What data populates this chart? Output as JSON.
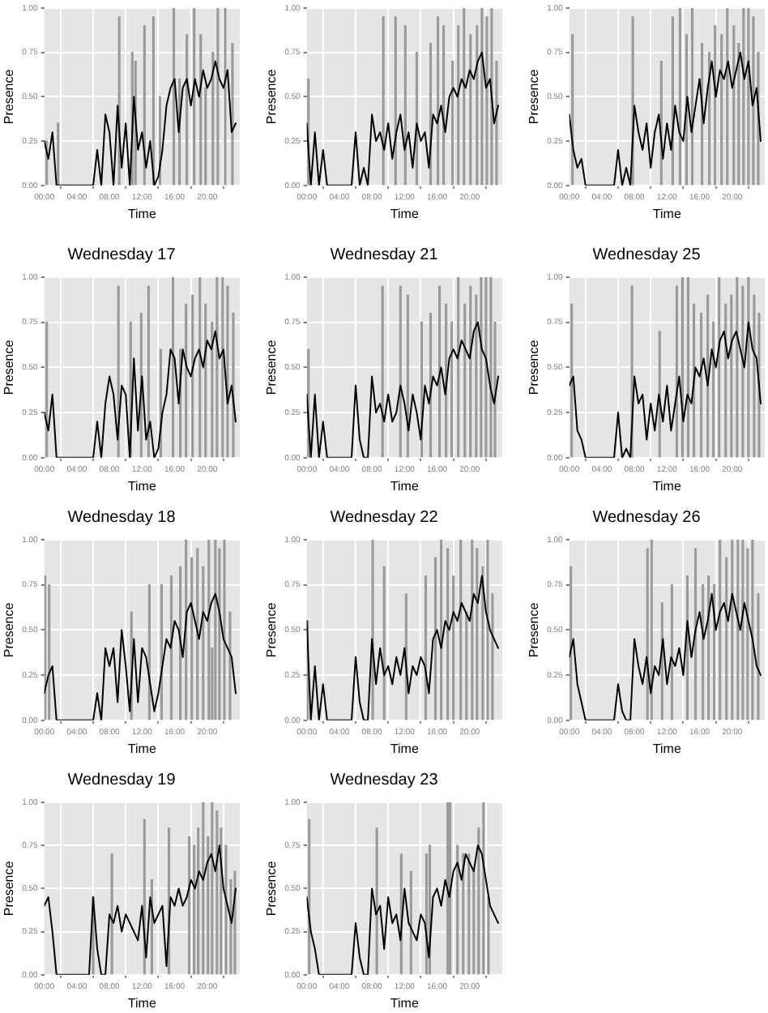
{
  "chart_data": [
    {
      "type": "line",
      "xlabel": "Time",
      "ylabel": "Presence",
      "xlim": [
        0,
        24
      ],
      "xticks": [
        {
          "value": 0,
          "label": "00:00"
        },
        {
          "value": 4,
          "label": "04:00"
        },
        {
          "value": 8,
          "label": "08:00"
        },
        {
          "value": 12,
          "label": "12:00"
        },
        {
          "value": 16,
          "label": "16:00"
        },
        {
          "value": 20,
          "label": "20:00"
        }
      ],
      "ylim": [
        0,
        1
      ],
      "yticks": [
        {
          "value": 0,
          "label": "0.00"
        },
        {
          "value": 0.25,
          "label": "0.25"
        },
        {
          "value": 0.5,
          "label": "0.50"
        },
        {
          "value": 0.75,
          "label": "0.75"
        },
        {
          "value": 1,
          "label": "1.00"
        }
      ],
      "grid": true,
      "legend": false,
      "marker": "none",
      "x": [
        0,
        0.5,
        1,
        1.5,
        2,
        2.5,
        3,
        3.5,
        4,
        4.5,
        5,
        5.5,
        6,
        6.5,
        7,
        7.5,
        8,
        8.5,
        9,
        9.5,
        10,
        10.5,
        11,
        11.5,
        12,
        12.5,
        13,
        13.5,
        14,
        14.5,
        15,
        15.5,
        16,
        16.5,
        17,
        17.5,
        18,
        18.5,
        19,
        19.5,
        20,
        20.5,
        21,
        21.5,
        22,
        22.5,
        23,
        23.5
      ],
      "series": [
        {
          "type": "bar",
          "color": "#999999",
          "x": [
            0.3,
            1.7,
            9.2,
            10.8,
            11.2,
            12.3,
            13.4,
            14.2,
            15.9,
            16.6,
            17.5,
            18.4,
            19.2,
            19.8,
            20.7,
            21.3,
            22.2,
            23.1
          ],
          "values": [
            0.25,
            0.35,
            0.95,
            0.75,
            0.7,
            0.9,
            0.95,
            0.5,
            1,
            0.6,
            0.85,
            1,
            0.85,
            0.55,
            0.75,
            1,
            1,
            0.8
          ]
        },
        {
          "color": "#000000",
          "values": [
            0.25,
            0.15,
            0.3,
            0,
            0,
            0,
            0,
            0,
            0,
            0,
            0,
            0,
            0,
            0.2,
            0,
            0.4,
            0.3,
            0,
            0.45,
            0.1,
            0.35,
            0,
            0.5,
            0.2,
            0.3,
            0.1,
            0.25,
            0,
            0.05,
            0.2,
            0.45,
            0.55,
            0.6,
            0.3,
            0.55,
            0.6,
            0.45,
            0.6,
            0.5,
            0.65,
            0.55,
            0.6,
            0.7,
            0.6,
            0.55,
            0.65,
            0.3,
            0.35
          ]
        }
      ]
    },
    {
      "type": "line",
      "xlabel": "Time",
      "ylabel": "Presence",
      "xlim": [
        0,
        24
      ],
      "xticks": [
        {
          "value": 0,
          "label": "00:00"
        },
        {
          "value": 4,
          "label": "04:00"
        },
        {
          "value": 8,
          "label": "08:00"
        },
        {
          "value": 12,
          "label": "12:00"
        },
        {
          "value": 16,
          "label": "16:00"
        },
        {
          "value": 20,
          "label": "20:00"
        }
      ],
      "ylim": [
        0,
        1
      ],
      "yticks": [
        {
          "value": 0,
          "label": "0.00"
        },
        {
          "value": 0.25,
          "label": "0.25"
        },
        {
          "value": 0.5,
          "label": "0.50"
        },
        {
          "value": 0.75,
          "label": "0.75"
        },
        {
          "value": 1,
          "label": "1.00"
        }
      ],
      "grid": true,
      "legend": false,
      "marker": "none",
      "x": [
        0,
        0.5,
        1,
        1.5,
        2,
        2.5,
        3,
        3.5,
        4,
        4.5,
        5,
        5.5,
        6,
        6.5,
        7,
        7.5,
        8,
        8.5,
        9,
        9.5,
        10,
        10.5,
        11,
        11.5,
        12,
        12.5,
        13,
        13.5,
        14,
        14.5,
        15,
        15.5,
        16,
        16.5,
        17,
        17.5,
        18,
        18.5,
        19,
        19.5,
        20,
        20.5,
        21,
        21.5,
        22,
        22.5,
        23,
        23.5
      ],
      "series": [
        {
          "type": "bar",
          "color": "#999999",
          "x": [
            0.2,
            9.4,
            10.9,
            12.1,
            13.5,
            15.2,
            16.1,
            16.8,
            17.9,
            18.6,
            19.3,
            20.1,
            20.9,
            21.5,
            22.1,
            22.7,
            23.3
          ],
          "values": [
            0.6,
            0.95,
            0.95,
            0.9,
            0.75,
            0.8,
            0.95,
            0.9,
            0.7,
            0.9,
            1,
            0.85,
            0.9,
            1,
            0.95,
            1,
            0.7
          ]
        },
        {
          "color": "#000000",
          "values": [
            0.35,
            0,
            0.3,
            0,
            0.2,
            0,
            0,
            0,
            0,
            0,
            0,
            0,
            0.3,
            0,
            0.1,
            0,
            0.4,
            0.25,
            0.3,
            0.2,
            0.35,
            0.15,
            0.3,
            0.4,
            0.2,
            0.3,
            0.1,
            0.35,
            0.25,
            0.3,
            0.1,
            0.4,
            0.35,
            0.45,
            0.3,
            0.5,
            0.55,
            0.5,
            0.6,
            0.55,
            0.65,
            0.6,
            0.7,
            0.75,
            0.55,
            0.6,
            0.35,
            0.45
          ]
        }
      ]
    },
    {
      "type": "line",
      "xlabel": "Time",
      "ylabel": "Presence",
      "xlim": [
        0,
        24
      ],
      "xticks": [
        {
          "value": 0,
          "label": "00:00"
        },
        {
          "value": 4,
          "label": "04:00"
        },
        {
          "value": 8,
          "label": "08:00"
        },
        {
          "value": 12,
          "label": "12:00"
        },
        {
          "value": 16,
          "label": "16:00"
        },
        {
          "value": 20,
          "label": "20:00"
        }
      ],
      "ylim": [
        0,
        1
      ],
      "yticks": [
        {
          "value": 0,
          "label": "0.00"
        },
        {
          "value": 0.25,
          "label": "0.25"
        },
        {
          "value": 0.5,
          "label": "0.50"
        },
        {
          "value": 0.75,
          "label": "0.75"
        },
        {
          "value": 1,
          "label": "1.00"
        }
      ],
      "grid": true,
      "legend": false,
      "marker": "none",
      "x": [
        0,
        0.5,
        1,
        1.5,
        2,
        2.5,
        3,
        3.5,
        4,
        4.5,
        5,
        5.5,
        6,
        6.5,
        7,
        7.5,
        8,
        8.5,
        9,
        9.5,
        10,
        10.5,
        11,
        11.5,
        12,
        12.5,
        13,
        13.5,
        14,
        14.5,
        15,
        15.5,
        16,
        16.5,
        17,
        17.5,
        18,
        18.5,
        19,
        19.5,
        20,
        20.5,
        21,
        21.5,
        22,
        22.5,
        23,
        23.5
      ],
      "series": [
        {
          "type": "bar",
          "color": "#999999",
          "x": [
            0.4,
            7.8,
            11.3,
            12.7,
            13.6,
            14.4,
            15.1,
            16.3,
            17.2,
            17.9,
            18.7,
            19.4,
            20.2,
            20.8,
            21.4,
            22,
            22.6,
            23.2
          ],
          "values": [
            0.85,
            0.95,
            0.7,
            0.95,
            1,
            0.85,
            1,
            0.8,
            0.75,
            0.9,
            0.85,
            1,
            0.9,
            0.8,
            1,
            1,
            0.95,
            0.75
          ]
        },
        {
          "color": "#000000",
          "values": [
            0.4,
            0.2,
            0.1,
            0.15,
            0,
            0,
            0,
            0,
            0,
            0,
            0,
            0,
            0.2,
            0,
            0.1,
            0,
            0.45,
            0.3,
            0.2,
            0.35,
            0.1,
            0.3,
            0.4,
            0.15,
            0.35,
            0.2,
            0.45,
            0.3,
            0.25,
            0.5,
            0.3,
            0.45,
            0.6,
            0.35,
            0.55,
            0.7,
            0.5,
            0.65,
            0.6,
            0.7,
            0.55,
            0.65,
            0.75,
            0.6,
            0.7,
            0.45,
            0.55,
            0.25
          ]
        }
      ]
    },
    {
      "type": "line",
      "title": "Wednesday 17",
      "xlabel": "Time",
      "ylabel": "Presence",
      "xlim": [
        0,
        24
      ],
      "xticks": [
        {
          "value": 0,
          "label": "00:00"
        },
        {
          "value": 4,
          "label": "04:00"
        },
        {
          "value": 8,
          "label": "08:00"
        },
        {
          "value": 12,
          "label": "12:00"
        },
        {
          "value": 16,
          "label": "16:00"
        },
        {
          "value": 20,
          "label": "20:00"
        }
      ],
      "ylim": [
        0,
        1
      ],
      "yticks": [
        {
          "value": 0,
          "label": "0.00"
        },
        {
          "value": 0.25,
          "label": "0.25"
        },
        {
          "value": 0.5,
          "label": "0.50"
        },
        {
          "value": 0.75,
          "label": "0.75"
        },
        {
          "value": 1,
          "label": "1.00"
        }
      ],
      "grid": true,
      "legend": false,
      "marker": "none",
      "x": [
        0,
        0.5,
        1,
        1.5,
        2,
        2.5,
        3,
        3.5,
        4,
        4.5,
        5,
        5.5,
        6,
        6.5,
        7,
        7.5,
        8,
        8.5,
        9,
        9.5,
        10,
        10.5,
        11,
        11.5,
        12,
        12.5,
        13,
        13.5,
        14,
        14.5,
        15,
        15.5,
        16,
        16.5,
        17,
        17.5,
        18,
        18.5,
        19,
        19.5,
        20,
        20.5,
        21,
        21.5,
        22,
        22.5,
        23,
        23.5
      ],
      "series": [
        {
          "type": "bar",
          "color": "#999999",
          "x": [
            0.3,
            9.1,
            10.6,
            11.9,
            12.8,
            14.3,
            15.8,
            16.7,
            17.4,
            18.2,
            19.1,
            19.8,
            20.6,
            21.2,
            21.9,
            22.5,
            23.2
          ],
          "values": [
            0.75,
            0.95,
            0.75,
            0.8,
            0.95,
            0.6,
            1,
            0.6,
            0.85,
            0.9,
            1,
            0.85,
            0.75,
            1,
            1,
            0.95,
            0.8
          ]
        },
        {
          "color": "#000000",
          "values": [
            0.25,
            0.15,
            0.35,
            0,
            0,
            0,
            0,
            0,
            0,
            0,
            0,
            0,
            0,
            0.2,
            0,
            0.3,
            0.45,
            0.35,
            0.1,
            0.4,
            0.35,
            0,
            0.55,
            0.15,
            0.45,
            0.1,
            0.2,
            0,
            0.05,
            0.25,
            0.35,
            0.6,
            0.55,
            0.3,
            0.6,
            0.5,
            0.45,
            0.55,
            0.6,
            0.5,
            0.65,
            0.6,
            0.7,
            0.55,
            0.6,
            0.3,
            0.4,
            0.2
          ]
        }
      ]
    },
    {
      "type": "line",
      "title": "Wednesday 21",
      "xlabel": "Time",
      "ylabel": "Presence",
      "xlim": [
        0,
        24
      ],
      "xticks": [
        {
          "value": 0,
          "label": "00:00"
        },
        {
          "value": 4,
          "label": "04:00"
        },
        {
          "value": 8,
          "label": "08:00"
        },
        {
          "value": 12,
          "label": "12:00"
        },
        {
          "value": 16,
          "label": "16:00"
        },
        {
          "value": 20,
          "label": "20:00"
        }
      ],
      "ylim": [
        0,
        1
      ],
      "yticks": [
        {
          "value": 0,
          "label": "0.00"
        },
        {
          "value": 0.25,
          "label": "0.25"
        },
        {
          "value": 0.5,
          "label": "0.50"
        },
        {
          "value": 0.75,
          "label": "0.75"
        },
        {
          "value": 1,
          "label": "1.00"
        }
      ],
      "grid": true,
      "legend": false,
      "marker": "none",
      "x": [
        0,
        0.5,
        1,
        1.5,
        2,
        2.5,
        3,
        3.5,
        4,
        4.5,
        5,
        5.5,
        6,
        6.5,
        7,
        7.5,
        8,
        8.5,
        9,
        9.5,
        10,
        10.5,
        11,
        11.5,
        12,
        12.5,
        13,
        13.5,
        14,
        14.5,
        15,
        15.5,
        16,
        16.5,
        17,
        17.5,
        18,
        18.5,
        19,
        19.5,
        20,
        20.5,
        21,
        21.5,
        22,
        22.5,
        23,
        23.5
      ],
      "series": [
        {
          "type": "bar",
          "color": "#999999",
          "x": [
            0.2,
            9.3,
            11.5,
            12.4,
            14.1,
            15.2,
            16.3,
            17.1,
            17.8,
            18.6,
            19.4,
            20.1,
            20.8,
            21.4,
            22,
            22.6,
            23.1
          ],
          "values": [
            0.6,
            0.95,
            0.95,
            0.9,
            0.75,
            0.8,
            0.95,
            0.85,
            0.75,
            1,
            0.85,
            0.95,
            0.9,
            1,
            1,
            1,
            0.75
          ]
        },
        {
          "color": "#000000",
          "values": [
            0.35,
            0,
            0.35,
            0,
            0.2,
            0,
            0,
            0,
            0,
            0,
            0,
            0,
            0.4,
            0.1,
            0,
            0,
            0.45,
            0.25,
            0.3,
            0.2,
            0.35,
            0.2,
            0.25,
            0.4,
            0.3,
            0.15,
            0.35,
            0.25,
            0.1,
            0.4,
            0.3,
            0.45,
            0.4,
            0.5,
            0.35,
            0.55,
            0.6,
            0.55,
            0.65,
            0.6,
            0.55,
            0.7,
            0.75,
            0.6,
            0.55,
            0.4,
            0.3,
            0.45
          ]
        }
      ]
    },
    {
      "type": "line",
      "title": "Wednesday 25",
      "xlabel": "Time",
      "ylabel": "Presence",
      "xlim": [
        0,
        24
      ],
      "xticks": [
        {
          "value": 0,
          "label": "00:00"
        },
        {
          "value": 4,
          "label": "04:00"
        },
        {
          "value": 8,
          "label": "08:00"
        },
        {
          "value": 12,
          "label": "12:00"
        },
        {
          "value": 16,
          "label": "16:00"
        },
        {
          "value": 20,
          "label": "20:00"
        }
      ],
      "ylim": [
        0,
        1
      ],
      "yticks": [
        {
          "value": 0,
          "label": "0.00"
        },
        {
          "value": 0.25,
          "label": "0.25"
        },
        {
          "value": 0.5,
          "label": "0.50"
        },
        {
          "value": 0.75,
          "label": "0.75"
        },
        {
          "value": 1,
          "label": "1.00"
        }
      ],
      "grid": true,
      "legend": false,
      "marker": "none",
      "x": [
        0,
        0.5,
        1,
        1.5,
        2,
        2.5,
        3,
        3.5,
        4,
        4.5,
        5,
        5.5,
        6,
        6.5,
        7,
        7.5,
        8,
        8.5,
        9,
        9.5,
        10,
        10.5,
        11,
        11.5,
        12,
        12.5,
        13,
        13.5,
        14,
        14.5,
        15,
        15.5,
        16,
        16.5,
        17,
        17.5,
        18,
        18.5,
        19,
        19.5,
        20,
        20.5,
        21,
        21.5,
        22,
        22.5,
        23,
        23.5
      ],
      "series": [
        {
          "type": "bar",
          "color": "#999999",
          "x": [
            0.3,
            7.7,
            11.1,
            13.2,
            13.9,
            14.6,
            15.3,
            16.2,
            17,
            17.7,
            18.4,
            19.2,
            19.9,
            20.6,
            21.3,
            22,
            22.7,
            23.3
          ],
          "values": [
            0.85,
            0.95,
            0.7,
            0.95,
            1,
            1,
            0.85,
            0.8,
            0.9,
            0.75,
            1,
            0.85,
            0.9,
            1,
            0.95,
            1,
            0.9,
            0.8
          ]
        },
        {
          "color": "#000000",
          "values": [
            0.4,
            0.45,
            0.15,
            0.1,
            0,
            0,
            0,
            0,
            0,
            0,
            0,
            0,
            0.25,
            0,
            0.05,
            0,
            0.45,
            0.3,
            0.35,
            0.1,
            0.3,
            0.15,
            0.35,
            0.2,
            0.4,
            0.15,
            0.3,
            0.45,
            0.2,
            0.35,
            0.3,
            0.5,
            0.45,
            0.55,
            0.4,
            0.6,
            0.5,
            0.65,
            0.7,
            0.55,
            0.65,
            0.7,
            0.6,
            0.5,
            0.75,
            0.6,
            0.55,
            0.3
          ]
        }
      ]
    },
    {
      "type": "line",
      "title": "Wednesday 18",
      "xlabel": "Time",
      "ylabel": "Presence",
      "xlim": [
        0,
        24
      ],
      "xticks": [
        {
          "value": 0,
          "label": "00:00"
        },
        {
          "value": 4,
          "label": "04:00"
        },
        {
          "value": 8,
          "label": "08:00"
        },
        {
          "value": 12,
          "label": "12:00"
        },
        {
          "value": 16,
          "label": "16:00"
        },
        {
          "value": 20,
          "label": "20:00"
        }
      ],
      "ylim": [
        0,
        1
      ],
      "yticks": [
        {
          "value": 0,
          "label": "0.00"
        },
        {
          "value": 0.25,
          "label": "0.25"
        },
        {
          "value": 0.5,
          "label": "0.50"
        },
        {
          "value": 0.75,
          "label": "0.75"
        },
        {
          "value": 1,
          "label": "1.00"
        }
      ],
      "grid": true,
      "legend": false,
      "marker": "none",
      "x": [
        0,
        0.5,
        1,
        1.5,
        2,
        2.5,
        3,
        3.5,
        4,
        4.5,
        5,
        5.5,
        6,
        6.5,
        7,
        7.5,
        8,
        8.5,
        9,
        9.5,
        10,
        10.5,
        11,
        11.5,
        12,
        12.5,
        13,
        13.5,
        14,
        14.5,
        15,
        15.5,
        16,
        16.5,
        17,
        17.5,
        18,
        18.5,
        19,
        19.5,
        20,
        20.5,
        21,
        21.5,
        22,
        22.5,
        23,
        23.5
      ],
      "series": [
        {
          "type": "bar",
          "color": "#999999",
          "x": [
            0.1,
            0.6,
            10.7,
            12.9,
            14.4,
            15.6,
            16.7,
            17.4,
            18.1,
            18.8,
            19.5,
            20.2,
            20.6,
            21,
            21.5,
            22.1,
            22.8
          ],
          "values": [
            0.8,
            0.75,
            0.6,
            0.75,
            0.75,
            0.8,
            0.85,
            1,
            0.9,
            0.95,
            0.85,
            1,
            0.4,
            1,
            0.95,
            1,
            0.6
          ]
        },
        {
          "color": "#000000",
          "values": [
            0.15,
            0.25,
            0.3,
            0,
            0,
            0,
            0,
            0,
            0,
            0,
            0,
            0,
            0,
            0.15,
            0,
            0.4,
            0.3,
            0.4,
            0.1,
            0.5,
            0.3,
            0.05,
            0.45,
            0.1,
            0.4,
            0.35,
            0.2,
            0.05,
            0.15,
            0.3,
            0.45,
            0.4,
            0.55,
            0.5,
            0.35,
            0.6,
            0.65,
            0.55,
            0.45,
            0.6,
            0.55,
            0.65,
            0.7,
            0.6,
            0.45,
            0.4,
            0.35,
            0.15
          ]
        }
      ]
    },
    {
      "type": "line",
      "title": "Wednesday 22",
      "xlabel": "Time",
      "ylabel": "Presence",
      "xlim": [
        0,
        24
      ],
      "xticks": [
        {
          "value": 0,
          "label": "00:00"
        },
        {
          "value": 4,
          "label": "04:00"
        },
        {
          "value": 8,
          "label": "08:00"
        },
        {
          "value": 12,
          "label": "12:00"
        },
        {
          "value": 16,
          "label": "16:00"
        },
        {
          "value": 20,
          "label": "20:00"
        }
      ],
      "ylim": [
        0,
        1
      ],
      "yticks": [
        {
          "value": 0,
          "label": "0.00"
        },
        {
          "value": 0.25,
          "label": "0.25"
        },
        {
          "value": 0.5,
          "label": "0.50"
        },
        {
          "value": 0.75,
          "label": "0.75"
        },
        {
          "value": 1,
          "label": "1.00"
        }
      ],
      "grid": true,
      "legend": false,
      "marker": "none",
      "x": [
        0,
        0.5,
        1,
        1.5,
        2,
        2.5,
        3,
        3.5,
        4,
        4.5,
        5,
        5.5,
        6,
        6.5,
        7,
        7.5,
        8,
        8.5,
        9,
        9.5,
        10,
        10.5,
        11,
        11.5,
        12,
        12.5,
        13,
        13.5,
        14,
        14.5,
        15,
        15.5,
        16,
        16.5,
        17,
        17.5,
        18,
        18.5,
        19,
        19.5,
        20,
        20.5,
        21,
        21.5,
        22,
        22.5,
        23,
        23.5
      ],
      "series": [
        {
          "type": "bar",
          "color": "#999999",
          "x": [
            0.1,
            8.1,
            9.5,
            12.2,
            14.6,
            15.8,
            16.5,
            17.3,
            18,
            18.9,
            19.6,
            20.3,
            20.9,
            21.6,
            22.2,
            22.8
          ],
          "values": [
            0.55,
            1,
            0.85,
            0.7,
            0.8,
            0.9,
            1,
            0.95,
            0.8,
            1,
            0.6,
            1,
            0.95,
            0.85,
            1,
            0.7
          ]
        },
        {
          "color": "#000000",
          "values": [
            0.55,
            0,
            0.3,
            0,
            0.2,
            0,
            0,
            0,
            0,
            0,
            0,
            0,
            0.35,
            0.1,
            0,
            0,
            0.45,
            0.2,
            0.4,
            0.25,
            0.3,
            0.2,
            0.35,
            0.25,
            0.4,
            0.15,
            0.3,
            0.25,
            0.35,
            0.3,
            0.15,
            0.45,
            0.5,
            0.4,
            0.55,
            0.5,
            0.6,
            0.55,
            0.65,
            0.6,
            0.55,
            0.7,
            0.65,
            0.8,
            0.6,
            0.5,
            0.45,
            0.4
          ]
        }
      ]
    },
    {
      "type": "line",
      "title": "Wednesday 26",
      "xlabel": "Time",
      "ylabel": "Presence",
      "xlim": [
        0,
        24
      ],
      "xticks": [
        {
          "value": 0,
          "label": "00:00"
        },
        {
          "value": 4,
          "label": "04:00"
        },
        {
          "value": 8,
          "label": "08:00"
        },
        {
          "value": 12,
          "label": "12:00"
        },
        {
          "value": 16,
          "label": "16:00"
        },
        {
          "value": 20,
          "label": "20:00"
        }
      ],
      "ylim": [
        0,
        1
      ],
      "yticks": [
        {
          "value": 0,
          "label": "0.00"
        },
        {
          "value": 0.25,
          "label": "0.25"
        },
        {
          "value": 0.5,
          "label": "0.50"
        },
        {
          "value": 0.75,
          "label": "0.75"
        },
        {
          "value": 1,
          "label": "1.00"
        }
      ],
      "grid": true,
      "legend": false,
      "marker": "none",
      "x": [
        0,
        0.5,
        1,
        1.5,
        2,
        2.5,
        3,
        3.5,
        4,
        4.5,
        5,
        5.5,
        6,
        6.5,
        7,
        7.5,
        8,
        8.5,
        9,
        9.5,
        10,
        10.5,
        11,
        11.5,
        12,
        12.5,
        13,
        13.5,
        14,
        14.5,
        15,
        15.5,
        16,
        16.5,
        17,
        17.5,
        18,
        18.5,
        19,
        19.5,
        20,
        20.5,
        21,
        21.5,
        22,
        22.5,
        23,
        23.5
      ],
      "series": [
        {
          "type": "bar",
          "color": "#999999",
          "x": [
            0.2,
            9.6,
            10.1,
            11.4,
            12.6,
            14.5,
            15.5,
            16.4,
            17.1,
            17.8,
            18.5,
            19.3,
            20,
            20.7,
            21.3,
            21.9,
            22.5,
            23.2
          ],
          "values": [
            0.85,
            0.95,
            1,
            0.65,
            0.75,
            0.8,
            0.95,
            0.75,
            0.8,
            0.75,
            1,
            0.9,
            1,
            1,
            1,
            0.95,
            1,
            0.7
          ]
        },
        {
          "color": "#000000",
          "values": [
            0.35,
            0.45,
            0.2,
            0.1,
            0,
            0,
            0,
            0,
            0,
            0,
            0,
            0,
            0.2,
            0.05,
            0,
            0,
            0.45,
            0.3,
            0.2,
            0.35,
            0.15,
            0.3,
            0.25,
            0.45,
            0.2,
            0.35,
            0.3,
            0.4,
            0.25,
            0.55,
            0.35,
            0.5,
            0.6,
            0.45,
            0.55,
            0.7,
            0.5,
            0.6,
            0.65,
            0.55,
            0.7,
            0.6,
            0.5,
            0.65,
            0.55,
            0.45,
            0.3,
            0.25
          ]
        }
      ]
    },
    {
      "type": "line",
      "title": "Wednesday 19",
      "xlabel": "Time",
      "ylabel": "Presence",
      "xlim": [
        0,
        24
      ],
      "xticks": [
        {
          "value": 0,
          "label": "00:00"
        },
        {
          "value": 4,
          "label": "04:00"
        },
        {
          "value": 8,
          "label": "08:00"
        },
        {
          "value": 12,
          "label": "12:00"
        },
        {
          "value": 16,
          "label": "16:00"
        },
        {
          "value": 20,
          "label": "20:00"
        }
      ],
      "ylim": [
        0,
        1
      ],
      "yticks": [
        {
          "value": 0,
          "label": "0.00"
        },
        {
          "value": 0.25,
          "label": "0.25"
        },
        {
          "value": 0.5,
          "label": "0.50"
        },
        {
          "value": 0.75,
          "label": "0.75"
        },
        {
          "value": 1,
          "label": "1.00"
        }
      ],
      "grid": true,
      "legend": false,
      "marker": "none",
      "x": [
        0,
        0.5,
        1,
        1.5,
        2,
        2.5,
        3,
        3.5,
        4,
        4.5,
        5,
        5.5,
        6,
        6.5,
        7,
        7.5,
        8,
        8.5,
        9,
        9.5,
        10,
        10.5,
        11,
        11.5,
        12,
        12.5,
        13,
        13.5,
        14,
        14.5,
        15,
        15.5,
        16,
        16.5,
        17,
        17.5,
        18,
        18.5,
        19,
        19.5,
        20,
        20.5,
        21,
        21.5,
        22,
        22.5,
        23,
        23.5
      ],
      "series": [
        {
          "type": "bar",
          "color": "#999999",
          "x": [
            6,
            8.3,
            12.3,
            13.2,
            15.3,
            17.8,
            18.4,
            18.9,
            19.5,
            20.1,
            20.6,
            21.2,
            21.7,
            22.3,
            22.9,
            23.4
          ],
          "values": [
            0.45,
            0.7,
            0.9,
            0.55,
            0.85,
            0.8,
            0.75,
            0.85,
            1,
            0.8,
            1,
            0.95,
            0.85,
            0.75,
            0.55,
            0.6
          ]
        },
        {
          "color": "#000000",
          "values": [
            0.4,
            0.45,
            0.25,
            0,
            0,
            0,
            0,
            0,
            0,
            0,
            0,
            0,
            0.45,
            0.15,
            0,
            0,
            0.35,
            0.3,
            0.4,
            0.25,
            0.35,
            0.3,
            0.25,
            0.2,
            0.4,
            0.1,
            0.45,
            0.3,
            0.35,
            0.4,
            0.05,
            0.45,
            0.4,
            0.5,
            0.4,
            0.45,
            0.55,
            0.5,
            0.6,
            0.55,
            0.65,
            0.7,
            0.6,
            0.75,
            0.5,
            0.4,
            0.3,
            0.5
          ]
        }
      ]
    },
    {
      "type": "line",
      "title": "Wednesday 23",
      "xlabel": "Time",
      "ylabel": "Presence",
      "xlim": [
        0,
        24
      ],
      "xticks": [
        {
          "value": 0,
          "label": "00:00"
        },
        {
          "value": 4,
          "label": "04:00"
        },
        {
          "value": 8,
          "label": "08:00"
        },
        {
          "value": 12,
          "label": "12:00"
        },
        {
          "value": 16,
          "label": "16:00"
        },
        {
          "value": 20,
          "label": "20:00"
        }
      ],
      "ylim": [
        0,
        1
      ],
      "yticks": [
        {
          "value": 0,
          "label": "0.00"
        },
        {
          "value": 0.25,
          "label": "0.25"
        },
        {
          "value": 0.5,
          "label": "0.50"
        },
        {
          "value": 0.75,
          "label": "0.75"
        },
        {
          "value": 1,
          "label": "1.00"
        }
      ],
      "grid": true,
      "legend": false,
      "marker": "none",
      "x": [
        0,
        0.5,
        1,
        1.5,
        2,
        2.5,
        3,
        3.5,
        4,
        4.5,
        5,
        5.5,
        6,
        6.5,
        7,
        7.5,
        8,
        8.5,
        9,
        9.5,
        10,
        10.5,
        11,
        11.5,
        12,
        12.5,
        13,
        13.5,
        14,
        14.5,
        15,
        15.5,
        16,
        16.5,
        17,
        17.5,
        18,
        18.5,
        19,
        19.5,
        20,
        20.5,
        21,
        21.5,
        22,
        22.5,
        23,
        23.5
      ],
      "series": [
        {
          "type": "bar",
          "color": "#999999",
          "x": [
            0.3,
            8.6,
            11.6,
            12.8,
            14.7,
            15.1,
            17.3,
            17.6,
            18.5,
            19.2,
            19.9,
            20.5,
            21.1,
            21.7,
            22.3
          ],
          "values": [
            0.9,
            0.85,
            0.7,
            0.6,
            0.7,
            0.75,
            1,
            1,
            0.75,
            0.7,
            0.7,
            0.6,
            0.85,
            1,
            0.45
          ]
        },
        {
          "color": "#000000",
          "values": [
            0.45,
            0.25,
            0.15,
            0,
            0,
            0,
            0,
            0,
            0,
            0,
            0,
            0,
            0.3,
            0.1,
            0,
            0,
            0.5,
            0.35,
            0.4,
            0.15,
            0.45,
            0.3,
            0.35,
            0.2,
            0.5,
            0.3,
            0.25,
            0.2,
            0.35,
            0.3,
            0.1,
            0.45,
            0.5,
            0.4,
            0.55,
            0.45,
            0.6,
            0.65,
            0.55,
            0.7,
            0.65,
            0.6,
            0.75,
            0.7,
            0.55,
            0.4,
            0.35,
            0.3
          ]
        }
      ]
    }
  ]
}
